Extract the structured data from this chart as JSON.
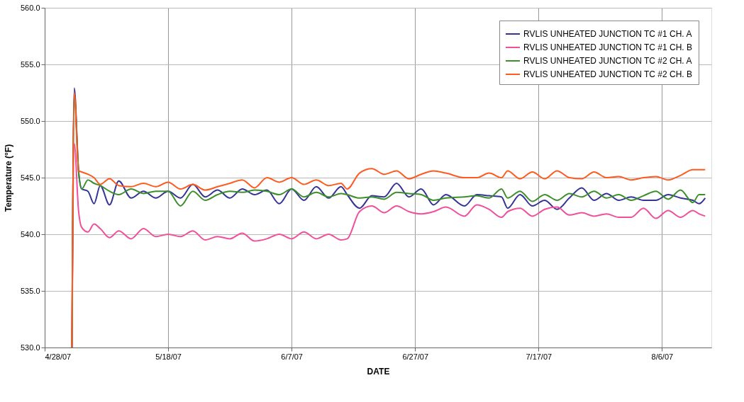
{
  "chart_data": {
    "type": "line",
    "xlabel": "DATE",
    "ylabel": "Temperature (°F)",
    "x": [
      "2007-05-02T10:00",
      "2007-05-02T19:00",
      "2007-05-03T12:00",
      "2007-05-04",
      "2007-05-05",
      "2007-05-06",
      "2007-05-07",
      "2007-05-08T12:00",
      "2007-05-10",
      "2007-05-12",
      "2007-05-14",
      "2007-05-16",
      "2007-05-18",
      "2007-05-20",
      "2007-05-22",
      "2007-05-24",
      "2007-05-26",
      "2007-05-28",
      "2007-05-30",
      "2007-06-01",
      "2007-06-03",
      "2007-06-05",
      "2007-06-07",
      "2007-06-09",
      "2007-06-11",
      "2007-06-13",
      "2007-06-15",
      "2007-06-16",
      "2007-06-18",
      "2007-06-20",
      "2007-06-22",
      "2007-06-24",
      "2007-06-26",
      "2007-06-28",
      "2007-06-30",
      "2007-07-02",
      "2007-07-05",
      "2007-07-07",
      "2007-07-09",
      "2007-07-11",
      "2007-07-12",
      "2007-07-14",
      "2007-07-16",
      "2007-07-18",
      "2007-07-20",
      "2007-07-22",
      "2007-07-24",
      "2007-07-26",
      "2007-07-28",
      "2007-07-30",
      "2007-08-01",
      "2007-08-03",
      "2007-08-05",
      "2007-08-07",
      "2007-08-09",
      "2007-08-11",
      "2007-08-12",
      "2007-08-13"
    ],
    "series": [
      {
        "name": "RVLIS UNHEATED JUNCTION TC #1 CH. A",
        "color": "#333399",
        "values": [
          530,
          552.9,
          545.5,
          544,
          543.8,
          542.7,
          544.3,
          542.6,
          544.7,
          543.2,
          543.8,
          543.2,
          543.8,
          543.2,
          544.4,
          543.3,
          543.9,
          543.2,
          544,
          543.5,
          543.9,
          542.7,
          544,
          543,
          544.2,
          543.2,
          544.2,
          543.5,
          542.3,
          543.4,
          543.3,
          544.5,
          543.3,
          544.0,
          542.6,
          543.5,
          542.5,
          543.5,
          543.4,
          543.3,
          542.3,
          543.5,
          542.5,
          543,
          542.2,
          543.2,
          544.1,
          543,
          543.6,
          543,
          543.3,
          543,
          543,
          543.5,
          543.2,
          543,
          542.7,
          543.2
        ]
      },
      {
        "name": "RVLIS UNHEATED JUNCTION TC #1 CH. B",
        "color": "#f04f9a",
        "values": [
          530,
          548,
          542,
          540.6,
          540.2,
          540.9,
          540.5,
          539.7,
          540.3,
          539.6,
          540.5,
          539.8,
          540.0,
          539.8,
          540.3,
          539.5,
          539.8,
          539.6,
          540.1,
          539.4,
          539.6,
          540.0,
          539.6,
          540.2,
          539.6,
          540.0,
          539.5,
          539.6,
          542.0,
          542.5,
          541.9,
          542.5,
          542.0,
          541.8,
          542.0,
          542.4,
          541.6,
          542.6,
          542.2,
          541.5,
          542.0,
          542.3,
          541.6,
          542.2,
          542.4,
          541.7,
          541.9,
          541.6,
          541.8,
          541.5,
          541.5,
          542.3,
          541.4,
          542.1,
          541.5,
          542.1,
          541.8,
          541.6
        ]
      },
      {
        "name": "RVLIS UNHEATED JUNCTION TC #2 CH. A",
        "color": "#3c8f2a",
        "values": [
          530,
          552.3,
          545.5,
          544,
          544.8,
          544.5,
          544.3,
          543.8,
          543.5,
          544,
          543.6,
          543.8,
          543.8,
          542.5,
          543.8,
          543,
          543.5,
          543.8,
          543.7,
          543.9,
          543.8,
          543.5,
          544,
          543.3,
          543.7,
          543.3,
          543.6,
          543.5,
          543.2,
          543.3,
          543.1,
          543.7,
          543.6,
          543.5,
          543,
          543.2,
          543.3,
          543.4,
          543.2,
          544,
          543.2,
          543.8,
          542.9,
          543.5,
          543,
          543.6,
          543.3,
          543.8,
          543.2,
          543.5,
          543,
          543.4,
          543.8,
          543.1,
          543.9,
          542.8,
          543.5,
          543.5
        ]
      },
      {
        "name": "RVLIS UNHEATED JUNCTION TC #2 CH. B",
        "color": "#ff5a1f",
        "values": [
          530,
          552.5,
          545.6,
          545.5,
          545.3,
          545.0,
          544.4,
          544.9,
          544.3,
          544.2,
          544.5,
          544.2,
          544.6,
          544.0,
          544.4,
          543.9,
          544.2,
          544.5,
          544.8,
          544.1,
          545.0,
          544.6,
          545.0,
          544.4,
          544.8,
          544.3,
          544.5,
          544.0,
          545.4,
          545.8,
          545.3,
          545.6,
          544.9,
          545.3,
          545.6,
          545.4,
          545.0,
          545.0,
          545.4,
          545.0,
          545.6,
          544.9,
          545.5,
          544.9,
          545.6,
          545.0,
          544.9,
          545.5,
          545.0,
          545.1,
          544.8,
          545.0,
          545.1,
          544.8,
          545.2,
          545.7,
          545.7,
          545.7
        ]
      }
    ],
    "xlim": [
      "2007-04-28",
      "2007-08-14"
    ],
    "xticks": [
      {
        "value": "2007-04-28",
        "label": "4/28/07"
      },
      {
        "value": "2007-05-18",
        "label": "5/18/07"
      },
      {
        "value": "2007-06-07",
        "label": "6/7/07"
      },
      {
        "value": "2007-06-27",
        "label": "6/27/07"
      },
      {
        "value": "2007-07-17",
        "label": "7/17/07"
      },
      {
        "value": "2007-08-06",
        "label": "8/6/07"
      }
    ],
    "ylim": [
      530,
      560
    ],
    "yticks": [
      {
        "value": 530,
        "label": "530.0"
      },
      {
        "value": 535,
        "label": "535.0"
      },
      {
        "value": 540,
        "label": "540.0"
      },
      {
        "value": 545,
        "label": "545.0"
      },
      {
        "value": 550,
        "label": "550.0"
      },
      {
        "value": 555,
        "label": "555.0"
      },
      {
        "value": 560,
        "label": "560.0"
      }
    ],
    "grid": true,
    "legend": "top right",
    "line_style": "solid",
    "marker": "none"
  }
}
